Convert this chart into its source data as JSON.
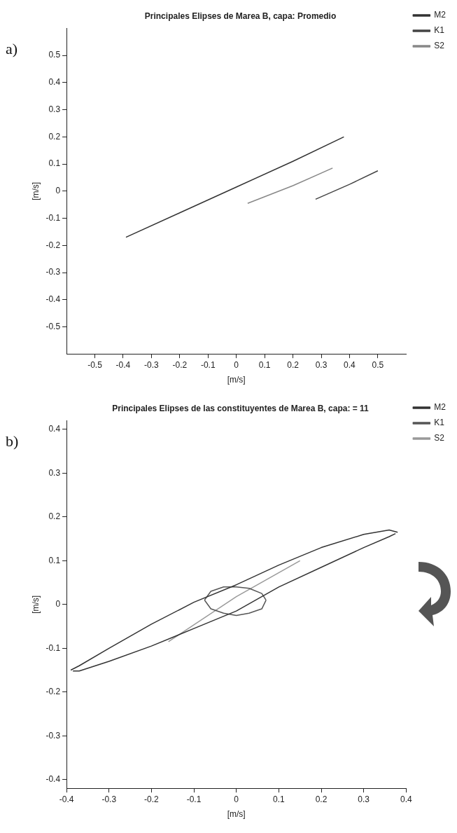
{
  "chart_data": [
    {
      "type": "line",
      "title": "Principales Elipses de Marea B, capa: Promedio",
      "xlabel": "[m/s]",
      "ylabel": "[m/s]",
      "annotations": [
        "a)"
      ],
      "xlim": [
        -0.6,
        0.6
      ],
      "xticks": [
        -0.5,
        -0.4,
        -0.3,
        -0.2,
        -0.1,
        0,
        0.1,
        0.2,
        0.3,
        0.4,
        0.5
      ],
      "ylim": [
        -0.6,
        0.6
      ],
      "yticks": [
        -0.5,
        -0.4,
        -0.3,
        -0.2,
        -0.1,
        0,
        0.1,
        0.2,
        0.3,
        0.4,
        0.5
      ],
      "grid": false,
      "legend": "top right",
      "marker": "none",
      "line_style": "solid",
      "series": [
        {
          "name": "M2",
          "color": "#333333",
          "x": [
            -0.39,
            -0.2,
            0,
            0.2,
            0.38
          ],
          "values": [
            -0.17,
            -0.08,
            0.015,
            0.11,
            0.2
          ]
        },
        {
          "name": "K1",
          "color": "#444444",
          "x": [
            0.28,
            0.4,
            0.5
          ],
          "values": [
            -0.03,
            0.025,
            0.075
          ]
        },
        {
          "name": "S2",
          "color": "#888888",
          "x": [
            0.04,
            0.2,
            0.34
          ],
          "values": [
            -0.045,
            0.02,
            0.085
          ]
        }
      ]
    },
    {
      "type": "line",
      "title": "Principales Elipses de las constituyentes de Marea B, capa: = 11",
      "xlabel": "[m/s]",
      "ylabel": "[m/s]",
      "annotations": [
        "b)"
      ],
      "xlim": [
        -0.4,
        0.4
      ],
      "xticks": [
        -0.4,
        -0.3,
        -0.2,
        -0.1,
        0,
        0.1,
        0.2,
        0.3,
        0.4
      ],
      "ylim": [
        -0.42,
        0.42
      ],
      "yticks": [
        -0.4,
        -0.3,
        -0.2,
        -0.1,
        0,
        0.1,
        0.2,
        0.3,
        0.4
      ],
      "grid": false,
      "legend": "top right",
      "marker": "none",
      "line_style": "solid",
      "series": [
        {
          "name": "M2",
          "color": "#333333",
          "x": [
            -0.39,
            -0.37,
            -0.3,
            -0.2,
            -0.1,
            0,
            0.1,
            0.2,
            0.3,
            0.36,
            0.38
          ],
          "values": [
            -0.15,
            -0.14,
            -0.1,
            -0.045,
            0.005,
            0.045,
            0.09,
            0.13,
            0.16,
            0.17,
            0.165
          ]
        },
        {
          "color": "#333333",
          "x": [
            -0.385,
            -0.37,
            -0.3,
            -0.2,
            -0.1,
            0,
            0.1,
            0.2,
            0.3,
            0.36,
            0.375
          ],
          "values": [
            -0.152,
            -0.152,
            -0.13,
            -0.095,
            -0.055,
            -0.015,
            0.04,
            0.085,
            0.13,
            0.155,
            0.162
          ]
        },
        {
          "name": "K1",
          "color": "#555555",
          "x": [
            -0.075,
            -0.06,
            -0.03,
            0,
            0.03,
            0.06,
            0.07
          ],
          "values": [
            0.01,
            0.03,
            0.04,
            0.04,
            0.037,
            0.025,
            0.01
          ]
        },
        {
          "color": "#555555",
          "x": [
            -0.075,
            -0.06,
            -0.03,
            0,
            0.03,
            0.06,
            0.07
          ],
          "values": [
            0.01,
            -0.01,
            -0.02,
            -0.025,
            -0.02,
            -0.01,
            0.01
          ]
        },
        {
          "name": "S2",
          "color": "#999999",
          "x": [
            -0.16,
            0,
            0.15
          ],
          "values": [
            -0.085,
            0.018,
            0.1
          ]
        }
      ]
    }
  ]
}
